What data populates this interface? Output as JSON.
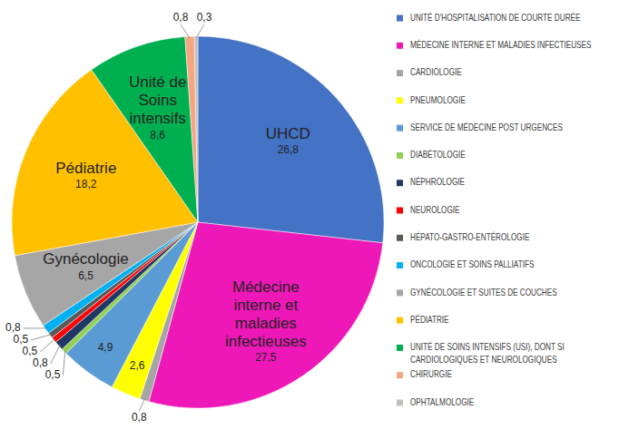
{
  "chart_data": {
    "type": "pie",
    "categories": [
      "UNITÉ D'HOSPITALISATION DE COURTE DURÉE",
      "MÉDECINE INTERNE ET MALADIES INFECTIEUSES",
      "CARDIOLOGIE",
      "PNEUMOLOGIE",
      "SERVICE DE MÉDECINE POST URGENCES",
      "DIABÉTOLOGIE",
      "NÉPHROLOGIE",
      "NEUROLOGIE",
      "HÉPATO-GASTRO-ENTÉROLOGIE",
      "ONCOLOGIE ET SOINS PALLIATIFS",
      "GYNÉCOLOGIE ET SUITES DE COUCHES",
      "PÉDIATRIE",
      "UNITÉ DE SOINS INTENSIFS (USI), DONT SI CARDIOLOGIQUES ET NEUROLOGIQUES",
      "CHIRURGIE",
      "OPHTALMOLOGIE"
    ],
    "values": [
      26.8,
      27.5,
      0.8,
      2.6,
      4.9,
      0.5,
      0.8,
      0.5,
      0.5,
      0.8,
      6.5,
      18.2,
      8.6,
      0.8,
      0.3
    ],
    "value_labels": [
      "26,8",
      "27,5",
      "0,8",
      "2,6",
      "4,9",
      "0,5",
      "0,8",
      "0,5",
      "0,5",
      "0,8",
      "6,5",
      "18,2",
      "8,6",
      "0,8",
      "0,3"
    ],
    "colors": [
      "#4472c4",
      "#ee18b8",
      "#a5a5a5",
      "#ffff00",
      "#5b9bd5",
      "#92d050",
      "#203864",
      "#ff0000",
      "#595959",
      "#00b0f0",
      "#a6a6a6",
      "#ffc000",
      "#00b050",
      "#f4a582",
      "#bfbfbf"
    ],
    "slice_labels": [
      [
        "UHCD"
      ],
      [
        "Médecine",
        "interne et",
        "maladies",
        "infectieuses"
      ],
      null,
      null,
      null,
      null,
      null,
      null,
      null,
      null,
      [
        "Gynécologie"
      ],
      [
        "Pédiatrie"
      ],
      [
        "Unité de",
        "Soins",
        "intensifs"
      ],
      null,
      null
    ],
    "legend": "right",
    "data_labels": true
  }
}
